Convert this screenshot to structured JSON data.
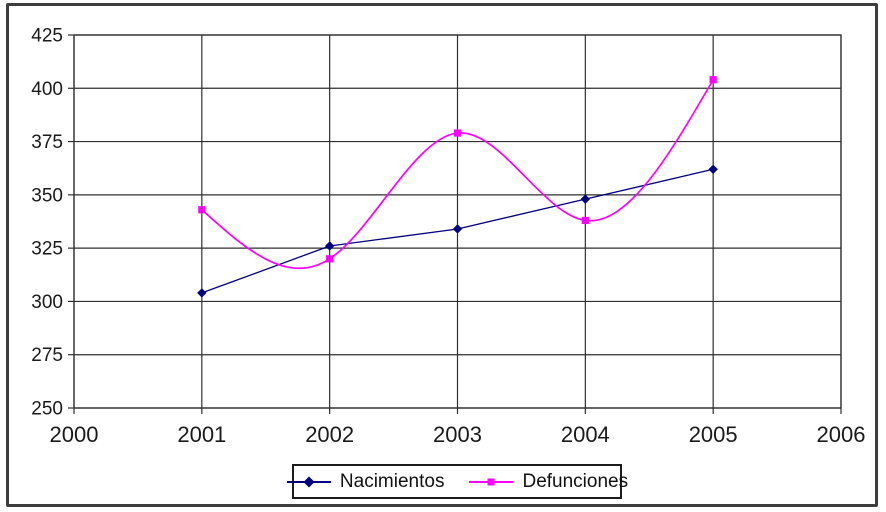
{
  "chart_data": {
    "type": "line",
    "x": [
      2001,
      2002,
      2003,
      2004,
      2005
    ],
    "series": [
      {
        "name": "Nacimientos",
        "values": [
          304,
          326,
          334,
          348,
          362
        ],
        "color": "#000080",
        "marker": "diamond",
        "smooth": false,
        "line_width": 1.3
      },
      {
        "name": "Defunciones",
        "values": [
          343,
          320,
          379,
          338,
          404
        ],
        "color": "#FF00FF",
        "marker": "square",
        "smooth": true,
        "line_width": 1.7
      }
    ],
    "xlim": [
      2000,
      2006
    ],
    "ylim": [
      250,
      425
    ],
    "x_ticks": [
      "2000",
      "2001",
      "2002",
      "2003",
      "2004",
      "2005",
      "2006"
    ],
    "y_ticks": [
      "250",
      "275",
      "300",
      "325",
      "350",
      "375",
      "400",
      "425"
    ],
    "grid": true,
    "legend_position": "bottom-center",
    "title": "",
    "xlabel": "",
    "ylabel": ""
  },
  "style": {
    "background": "#FFFFFF",
    "grid_color": "#2f2f2f",
    "axis_color": "#2f2f2f",
    "text_color": "#1a1a1a",
    "outer_border_color": "#3d3d3d",
    "legend_border_color": "#1c1c1c"
  }
}
